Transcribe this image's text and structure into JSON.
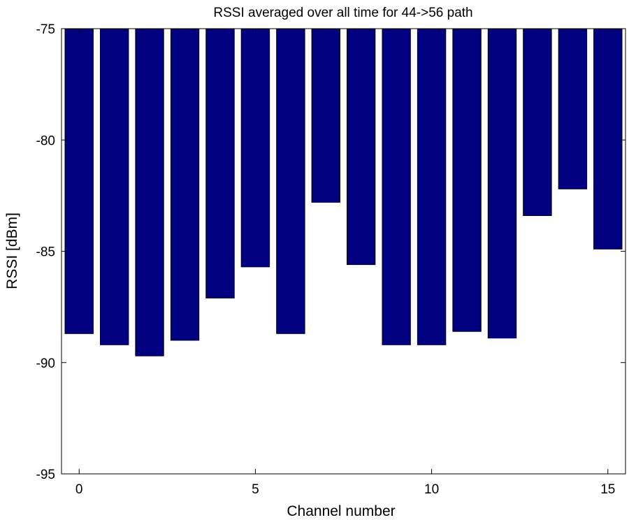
{
  "chart_data": {
    "type": "bar",
    "title": "RSSI averaged over all time for 44->56 path",
    "xlabel": "Channel number",
    "ylabel": "RSSI [dBm]",
    "categories": [
      0,
      1,
      2,
      3,
      4,
      5,
      6,
      7,
      8,
      9,
      10,
      11,
      12,
      13,
      14,
      15
    ],
    "values": [
      -88.7,
      -89.2,
      -89.7,
      -89.0,
      -87.1,
      -85.7,
      -88.7,
      -82.8,
      -85.6,
      -89.2,
      -89.2,
      -88.6,
      -88.9,
      -83.4,
      -82.2,
      -84.9
    ],
    "bar_baseline": -75,
    "xlim": [
      -0.5,
      15.5
    ],
    "ylim": [
      -95,
      -75
    ],
    "xticks": [
      0,
      5,
      10,
      15
    ],
    "yticks": [
      -75,
      -80,
      -85,
      -90,
      -95
    ],
    "grid": false,
    "legend": "none",
    "bar_color": "#000080",
    "bar_edge_color": "#000000"
  }
}
